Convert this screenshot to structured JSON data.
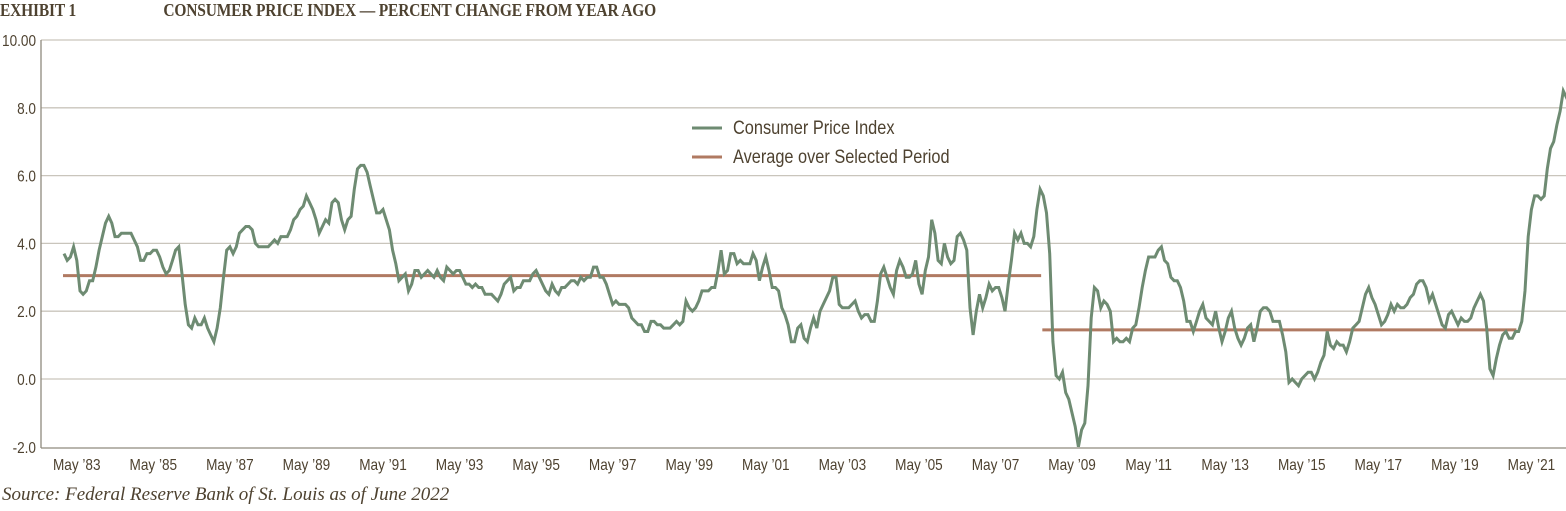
{
  "header": {
    "exhibit_label": "EXHIBIT 1",
    "title": "CONSUMER PRICE INDEX — PERCENT CHANGE FROM YEAR AGO"
  },
  "source_note": "Source: Federal Reserve Bank of St. Louis as of June 2022",
  "colors": {
    "cpi_line": "#6e8b72",
    "average_line": "#b07a62",
    "gridline": "#c9c5bc",
    "axis": "#8f8a7e",
    "text": "#4e4230"
  },
  "chart_data": {
    "type": "line",
    "title": "Consumer Price Index — Percent Change From Year Ago",
    "xlabel": "",
    "ylabel": "",
    "ylim": [
      -2.0,
      10.0
    ],
    "y_ticks": [
      "10.00",
      "8.0",
      "6.0",
      "4.0",
      "2.0",
      "0.0",
      "-2.0"
    ],
    "y_tick_values": [
      10,
      8,
      6,
      4,
      2,
      0,
      -2
    ],
    "x_tick_labels": [
      "May ’83",
      "May ’85",
      "May ’87",
      "May ’89",
      "May ’91",
      "May ’93",
      "May ’95",
      "May ’97",
      "May ’99",
      "May ’01",
      "May ’03",
      "May ’05",
      "May ’07",
      "May ’09",
      "May ’11",
      "May ’13",
      "May ’15",
      "May ’17",
      "May ’19",
      "May ’21"
    ],
    "grid": true,
    "legend_position": "upper center",
    "x_start": "Jan 1983",
    "x_end": "May 2022",
    "frequency": "monthly",
    "series": [
      {
        "name": "Consumer Price Index",
        "annual_values_by_year": {
          "1983": [
            3.7,
            3.5,
            3.6,
            3.9,
            3.5,
            2.6,
            2.5,
            2.6,
            2.9,
            2.9,
            3.3,
            3.8
          ],
          "1984": [
            4.2,
            4.6,
            4.8,
            4.6,
            4.2,
            4.2,
            4.3,
            4.3,
            4.3,
            4.3,
            4.1,
            3.9
          ],
          "1985": [
            3.5,
            3.5,
            3.7,
            3.7,
            3.8,
            3.8,
            3.6,
            3.3,
            3.1,
            3.2,
            3.5,
            3.8
          ],
          "1986": [
            3.9,
            3.1,
            2.2,
            1.6,
            1.5,
            1.8,
            1.6,
            1.6,
            1.8,
            1.5,
            1.3,
            1.1
          ],
          "1987": [
            1.5,
            2.1,
            3.0,
            3.8,
            3.9,
            3.7,
            3.9,
            4.3,
            4.4,
            4.5,
            4.5,
            4.4
          ],
          "1988": [
            4.0,
            3.9,
            3.9,
            3.9,
            3.9,
            4.0,
            4.1,
            4.0,
            4.2,
            4.2,
            4.2,
            4.4
          ],
          "1989": [
            4.7,
            4.8,
            5.0,
            5.1,
            5.4,
            5.2,
            5.0,
            4.7,
            4.3,
            4.5,
            4.7,
            4.6
          ],
          "1990": [
            5.2,
            5.3,
            5.2,
            4.7,
            4.4,
            4.7,
            4.8,
            5.6,
            6.2,
            6.3,
            6.3,
            6.1
          ],
          "1991": [
            5.7,
            5.3,
            4.9,
            4.9,
            5.0,
            4.7,
            4.4,
            3.8,
            3.4,
            2.9,
            3.0,
            3.1
          ],
          "1992": [
            2.6,
            2.8,
            3.2,
            3.2,
            3.0,
            3.1,
            3.2,
            3.1,
            3.0,
            3.2,
            3.0,
            2.9
          ],
          "1993": [
            3.3,
            3.2,
            3.1,
            3.2,
            3.2,
            3.0,
            2.8,
            2.8,
            2.7,
            2.8,
            2.7,
            2.7
          ],
          "1994": [
            2.5,
            2.5,
            2.5,
            2.4,
            2.3,
            2.5,
            2.8,
            2.9,
            3.0,
            2.6,
            2.7,
            2.7
          ],
          "1995": [
            2.9,
            2.9,
            2.9,
            3.1,
            3.2,
            3.0,
            2.8,
            2.6,
            2.5,
            2.8,
            2.6,
            2.5
          ],
          "1996": [
            2.7,
            2.7,
            2.8,
            2.9,
            2.9,
            2.8,
            3.0,
            2.9,
            3.0,
            3.0,
            3.3,
            3.3
          ],
          "1997": [
            3.0,
            3.0,
            2.8,
            2.5,
            2.2,
            2.3,
            2.2,
            2.2,
            2.2,
            2.1,
            1.8,
            1.7
          ],
          "1998": [
            1.6,
            1.6,
            1.4,
            1.4,
            1.7,
            1.7,
            1.6,
            1.6,
            1.5,
            1.5,
            1.5,
            1.6
          ],
          "1999": [
            1.7,
            1.6,
            1.7,
            2.3,
            2.1,
            2.0,
            2.1,
            2.3,
            2.6,
            2.6,
            2.6,
            2.7
          ],
          "2000": [
            2.7,
            3.2,
            3.8,
            3.1,
            3.2,
            3.7,
            3.7,
            3.4,
            3.5,
            3.4,
            3.4,
            3.4
          ],
          "2001": [
            3.7,
            3.5,
            2.9,
            3.3,
            3.6,
            3.2,
            2.7,
            2.7,
            2.6,
            2.1,
            1.9,
            1.6
          ],
          "2002": [
            1.1,
            1.1,
            1.5,
            1.6,
            1.2,
            1.1,
            1.5,
            1.8,
            1.5,
            2.0,
            2.2,
            2.4
          ],
          "2003": [
            2.6,
            3.0,
            3.0,
            2.2,
            2.1,
            2.1,
            2.1,
            2.2,
            2.3,
            2.0,
            1.8,
            1.9
          ],
          "2004": [
            1.9,
            1.7,
            1.7,
            2.3,
            3.1,
            3.3,
            3.0,
            2.7,
            2.5,
            3.2,
            3.5,
            3.3
          ],
          "2005": [
            3.0,
            3.0,
            3.1,
            3.5,
            2.8,
            2.5,
            3.2,
            3.6,
            4.7,
            4.3,
            3.5,
            3.4
          ],
          "2006": [
            4.0,
            3.6,
            3.4,
            3.5,
            4.2,
            4.3,
            4.1,
            3.8,
            2.1,
            1.3,
            2.0,
            2.5
          ],
          "2007": [
            2.1,
            2.4,
            2.8,
            2.6,
            2.7,
            2.7,
            2.4,
            2.0,
            2.8,
            3.5,
            4.3,
            4.1
          ],
          "2008": [
            4.3,
            4.0,
            4.0,
            3.9,
            4.2,
            5.0,
            5.6,
            5.4,
            4.9,
            3.7,
            1.1,
            0.1
          ],
          "2009": [
            0.0,
            0.2,
            -0.4,
            -0.6,
            -1.0,
            -1.4,
            -2.0,
            -1.5,
            -1.3,
            -0.2,
            1.8,
            2.7
          ],
          "2010": [
            2.6,
            2.1,
            2.3,
            2.2,
            2.0,
            1.1,
            1.2,
            1.1,
            1.1,
            1.2,
            1.1,
            1.5
          ],
          "2011": [
            1.6,
            2.1,
            2.7,
            3.2,
            3.6,
            3.6,
            3.6,
            3.8,
            3.9,
            3.5,
            3.4,
            3.0
          ],
          "2012": [
            2.9,
            2.9,
            2.7,
            2.3,
            1.7,
            1.7,
            1.4,
            1.7,
            2.0,
            2.2,
            1.8,
            1.7
          ],
          "2013": [
            1.6,
            2.0,
            1.5,
            1.1,
            1.4,
            1.8,
            2.0,
            1.5,
            1.2,
            1.0,
            1.2,
            1.5
          ],
          "2014": [
            1.6,
            1.1,
            1.5,
            2.0,
            2.1,
            2.1,
            2.0,
            1.7,
            1.7,
            1.7,
            1.3,
            0.8
          ],
          "2015": [
            -0.1,
            0.0,
            -0.1,
            -0.2,
            0.0,
            0.1,
            0.2,
            0.2,
            0.0,
            0.2,
            0.5,
            0.7
          ],
          "2016": [
            1.4,
            1.0,
            0.9,
            1.1,
            1.0,
            1.0,
            0.8,
            1.1,
            1.5,
            1.6,
            1.7,
            2.1
          ],
          "2017": [
            2.5,
            2.7,
            2.4,
            2.2,
            1.9,
            1.6,
            1.7,
            1.9,
            2.2,
            2.0,
            2.2,
            2.1
          ],
          "2018": [
            2.1,
            2.2,
            2.4,
            2.5,
            2.8,
            2.9,
            2.9,
            2.7,
            2.3,
            2.5,
            2.2,
            1.9
          ],
          "2019": [
            1.6,
            1.5,
            1.9,
            2.0,
            1.8,
            1.6,
            1.8,
            1.7,
            1.7,
            1.8,
            2.1,
            2.3
          ],
          "2020": [
            2.5,
            2.3,
            1.5,
            0.3,
            0.1,
            0.6,
            1.0,
            1.3,
            1.4,
            1.2,
            1.2,
            1.4
          ],
          "2021": [
            1.4,
            1.7,
            2.6,
            4.2,
            5.0,
            5.4,
            5.4,
            5.3,
            5.4,
            6.2,
            6.8,
            7.0
          ],
          "2022": [
            7.5,
            7.9,
            8.5,
            8.3,
            8.6
          ]
        }
      },
      {
        "name": "Average over Selected Period",
        "segments": [
          {
            "start": "Jan 1983",
            "end": "Jul 2008",
            "value": 3.05
          },
          {
            "start": "Aug 2008",
            "end": "Dec 2020",
            "value": 1.45
          }
        ]
      }
    ]
  },
  "legend": {
    "items": [
      {
        "label": "Consumer Price Index",
        "color": "#6e8b72"
      },
      {
        "label": "Average over Selected Period",
        "color": "#b07a62"
      }
    ]
  }
}
